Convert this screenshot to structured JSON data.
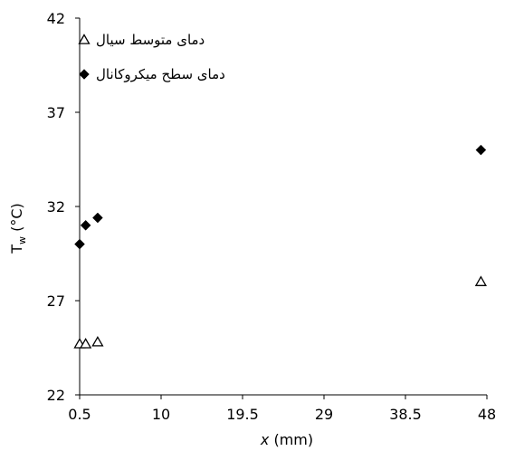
{
  "chart_data": {
    "type": "scatter",
    "xlabel": "x (mm)",
    "xlabel_var": "x",
    "xlabel_unit": " (mm)",
    "ylabel": "Tw (°C)",
    "ylabel_main": "T",
    "ylabel_sub": "w",
    "ylabel_unit": " (°C)",
    "xlim": [
      0.5,
      48
    ],
    "ylim": [
      22,
      42
    ],
    "xticks": [
      "0.5",
      "10",
      "19.5",
      "29",
      "38.5",
      "48"
    ],
    "yticks": [
      "42",
      "37",
      "32",
      "27",
      "22"
    ],
    "grid": false,
    "legend_position": "top-left",
    "series": [
      {
        "name": "دمای متوسط سیال",
        "marker": "triangle-open",
        "color": "#000000",
        "points": [
          {
            "x": 0.5,
            "y": 24.7
          },
          {
            "x": 1.2,
            "y": 24.7
          },
          {
            "x": 2.6,
            "y": 24.8
          },
          {
            "x": 47.3,
            "y": 28.0
          }
        ]
      },
      {
        "name": "دمای سطح میکروکانال",
        "marker": "diamond-filled",
        "color": "#000000",
        "points": [
          {
            "x": 0.5,
            "y": 30.0
          },
          {
            "x": 1.2,
            "y": 31.0
          },
          {
            "x": 2.6,
            "y": 31.4
          },
          {
            "x": 47.3,
            "y": 35.0
          }
        ]
      }
    ]
  }
}
